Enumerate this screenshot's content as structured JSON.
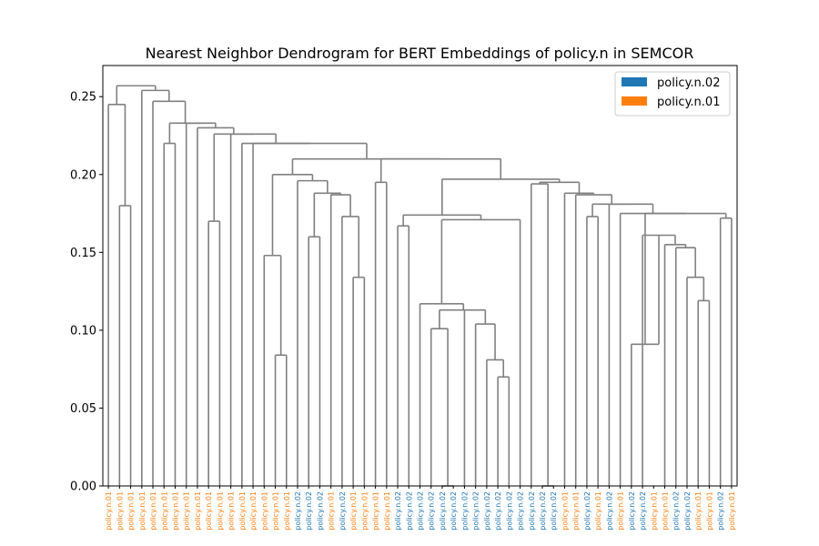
{
  "chart_data": {
    "type": "dendrogram",
    "title": "Nearest Neighbor Dendrogram for BERT Embeddings of policy.n in SEMCOR",
    "xlabel": "",
    "ylabel": "",
    "ylim": [
      0,
      0.27
    ],
    "y_ticks": [
      "0.00",
      "0.05",
      "0.10",
      "0.15",
      "0.20",
      "0.25"
    ],
    "y_tick_values": [
      0,
      0.05,
      0.1,
      0.15,
      0.2,
      0.25
    ],
    "grid": false,
    "legend_position": "top-right",
    "legend": [
      {
        "label": "policy.n.02",
        "color": "#1f77b4"
      },
      {
        "label": "policy.n.01",
        "color": "#ff7f0e"
      }
    ],
    "link_color": "#808080",
    "leaf_colors": {
      "policy.n.02": "#1f77b4",
      "policy.n.01": "#ff7f0e"
    },
    "leaves": [
      "policy.n.01",
      "policy.n.01",
      "policy.n.01",
      "policy.n.01",
      "policy.n.01",
      "policy.n.01",
      "policy.n.01",
      "policy.n.01",
      "policy.n.01",
      "policy.n.01",
      "policy.n.01",
      "policy.n.01",
      "policy.n.01",
      "policy.n.01",
      "policy.n.01",
      "policy.n.01",
      "policy.n.01",
      "policy.n.02",
      "policy.n.02",
      "policy.n.02",
      "policy.n.01",
      "policy.n.02",
      "policy.n.01",
      "policy.n.01",
      "policy.n.01",
      "policy.n.01",
      "policy.n.02",
      "policy.n.02",
      "policy.n.02",
      "policy.n.02",
      "policy.n.02",
      "policy.n.02",
      "policy.n.02",
      "policy.n.02",
      "policy.n.02",
      "policy.n.02",
      "policy.n.02",
      "policy.n.02",
      "policy.n.02",
      "policy.n.02",
      "policy.n.02",
      "policy.n.01",
      "policy.n.01",
      "policy.n.02",
      "policy.n.01",
      "policy.n.02",
      "policy.n.01",
      "policy.n.02",
      "policy.n.02",
      "policy.n.01",
      "policy.n.01",
      "policy.n.02",
      "policy.n.02",
      "policy.n.01",
      "policy.n.01",
      "policy.n.02",
      "policy.n.01"
    ],
    "merges": [
      [
        0,
        1,
        0.245,
        1,
        2,
        0.18
      ],
      [
        5,
        7,
        0.0,
        10,
        11,
        0.0
      ],
      [
        26,
        27,
        0.0,
        28,
        29,
        0.0
      ]
    ]
  }
}
